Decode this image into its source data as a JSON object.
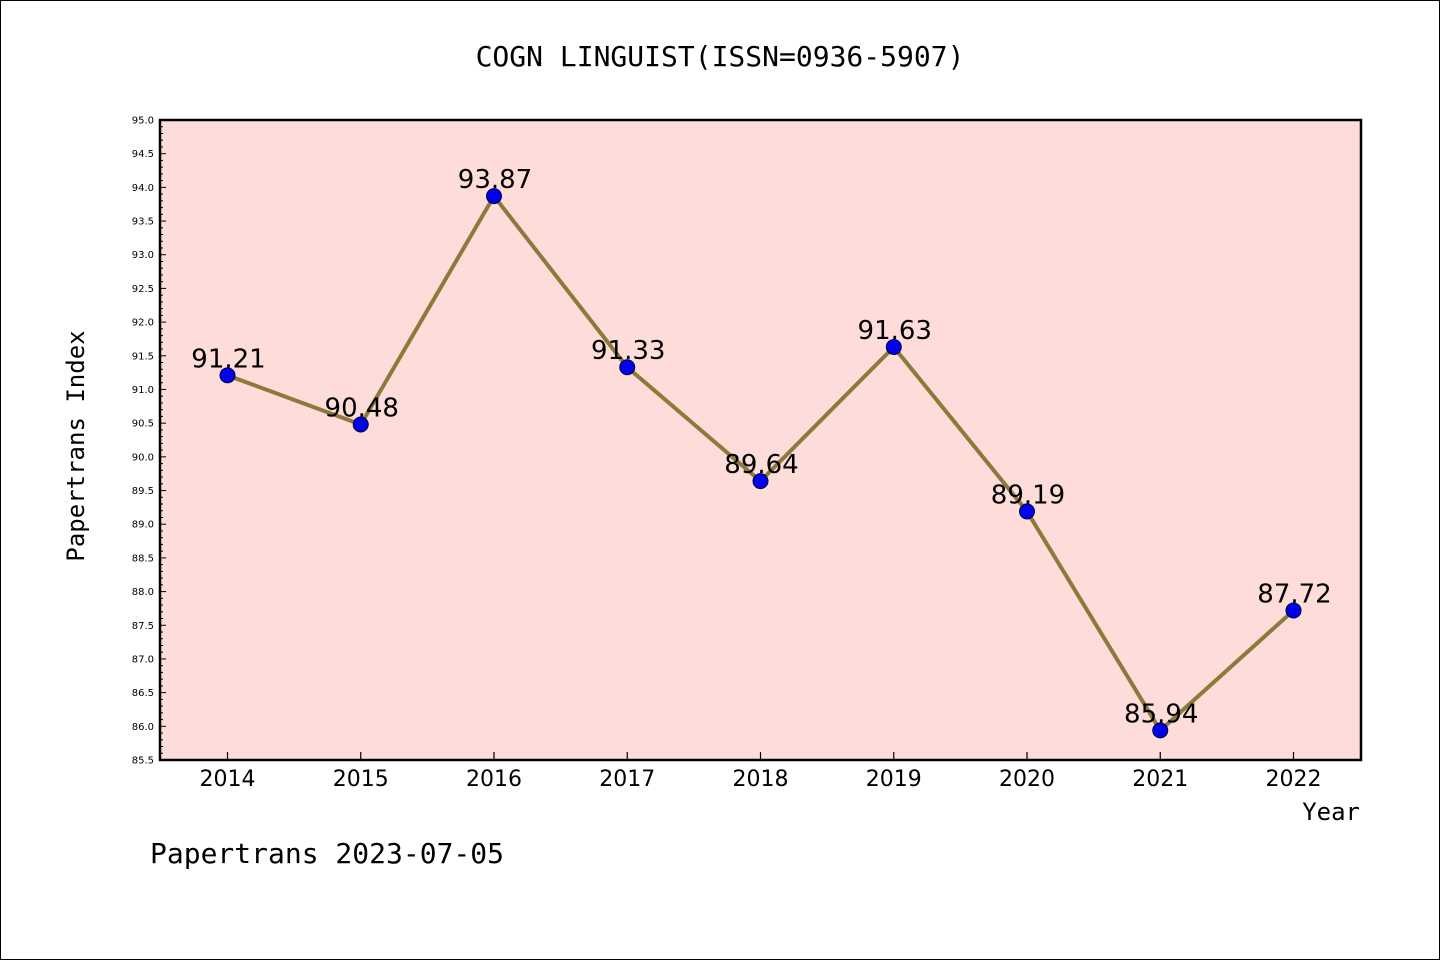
{
  "chart_data": {
    "type": "line",
    "title": "COGN LINGUIST(ISSN=0936-5907)",
    "xlabel": "Year",
    "ylabel": "Papertrans Index",
    "footer": "Papertrans 2023-07-05",
    "categories": [
      "2014",
      "2015",
      "2016",
      "2017",
      "2018",
      "2019",
      "2020",
      "2021",
      "2022"
    ],
    "values": [
      91.21,
      90.48,
      93.87,
      91.33,
      89.64,
      91.63,
      89.19,
      85.94,
      87.72
    ],
    "value_labels": [
      "91.21",
      "90.48",
      "93.87",
      "91.33",
      "89.64",
      "91.63",
      "89.19",
      "85.94",
      "87.72"
    ],
    "ylim": [
      85.5,
      95.0
    ],
    "y_ticks": [
      "85.5",
      "86.0",
      "86.5",
      "87.0",
      "87.5",
      "88.0",
      "88.5",
      "89.0",
      "89.5",
      "90.0",
      "90.5",
      "91.0",
      "91.5",
      "92.0",
      "92.5",
      "93.0",
      "93.5",
      "94.0",
      "94.5",
      "95.0"
    ],
    "grid": false,
    "colors": {
      "plot_background": "#fddcda",
      "line": "#8b7a3a",
      "marker": "#0000ee",
      "axis": "#000000"
    }
  }
}
